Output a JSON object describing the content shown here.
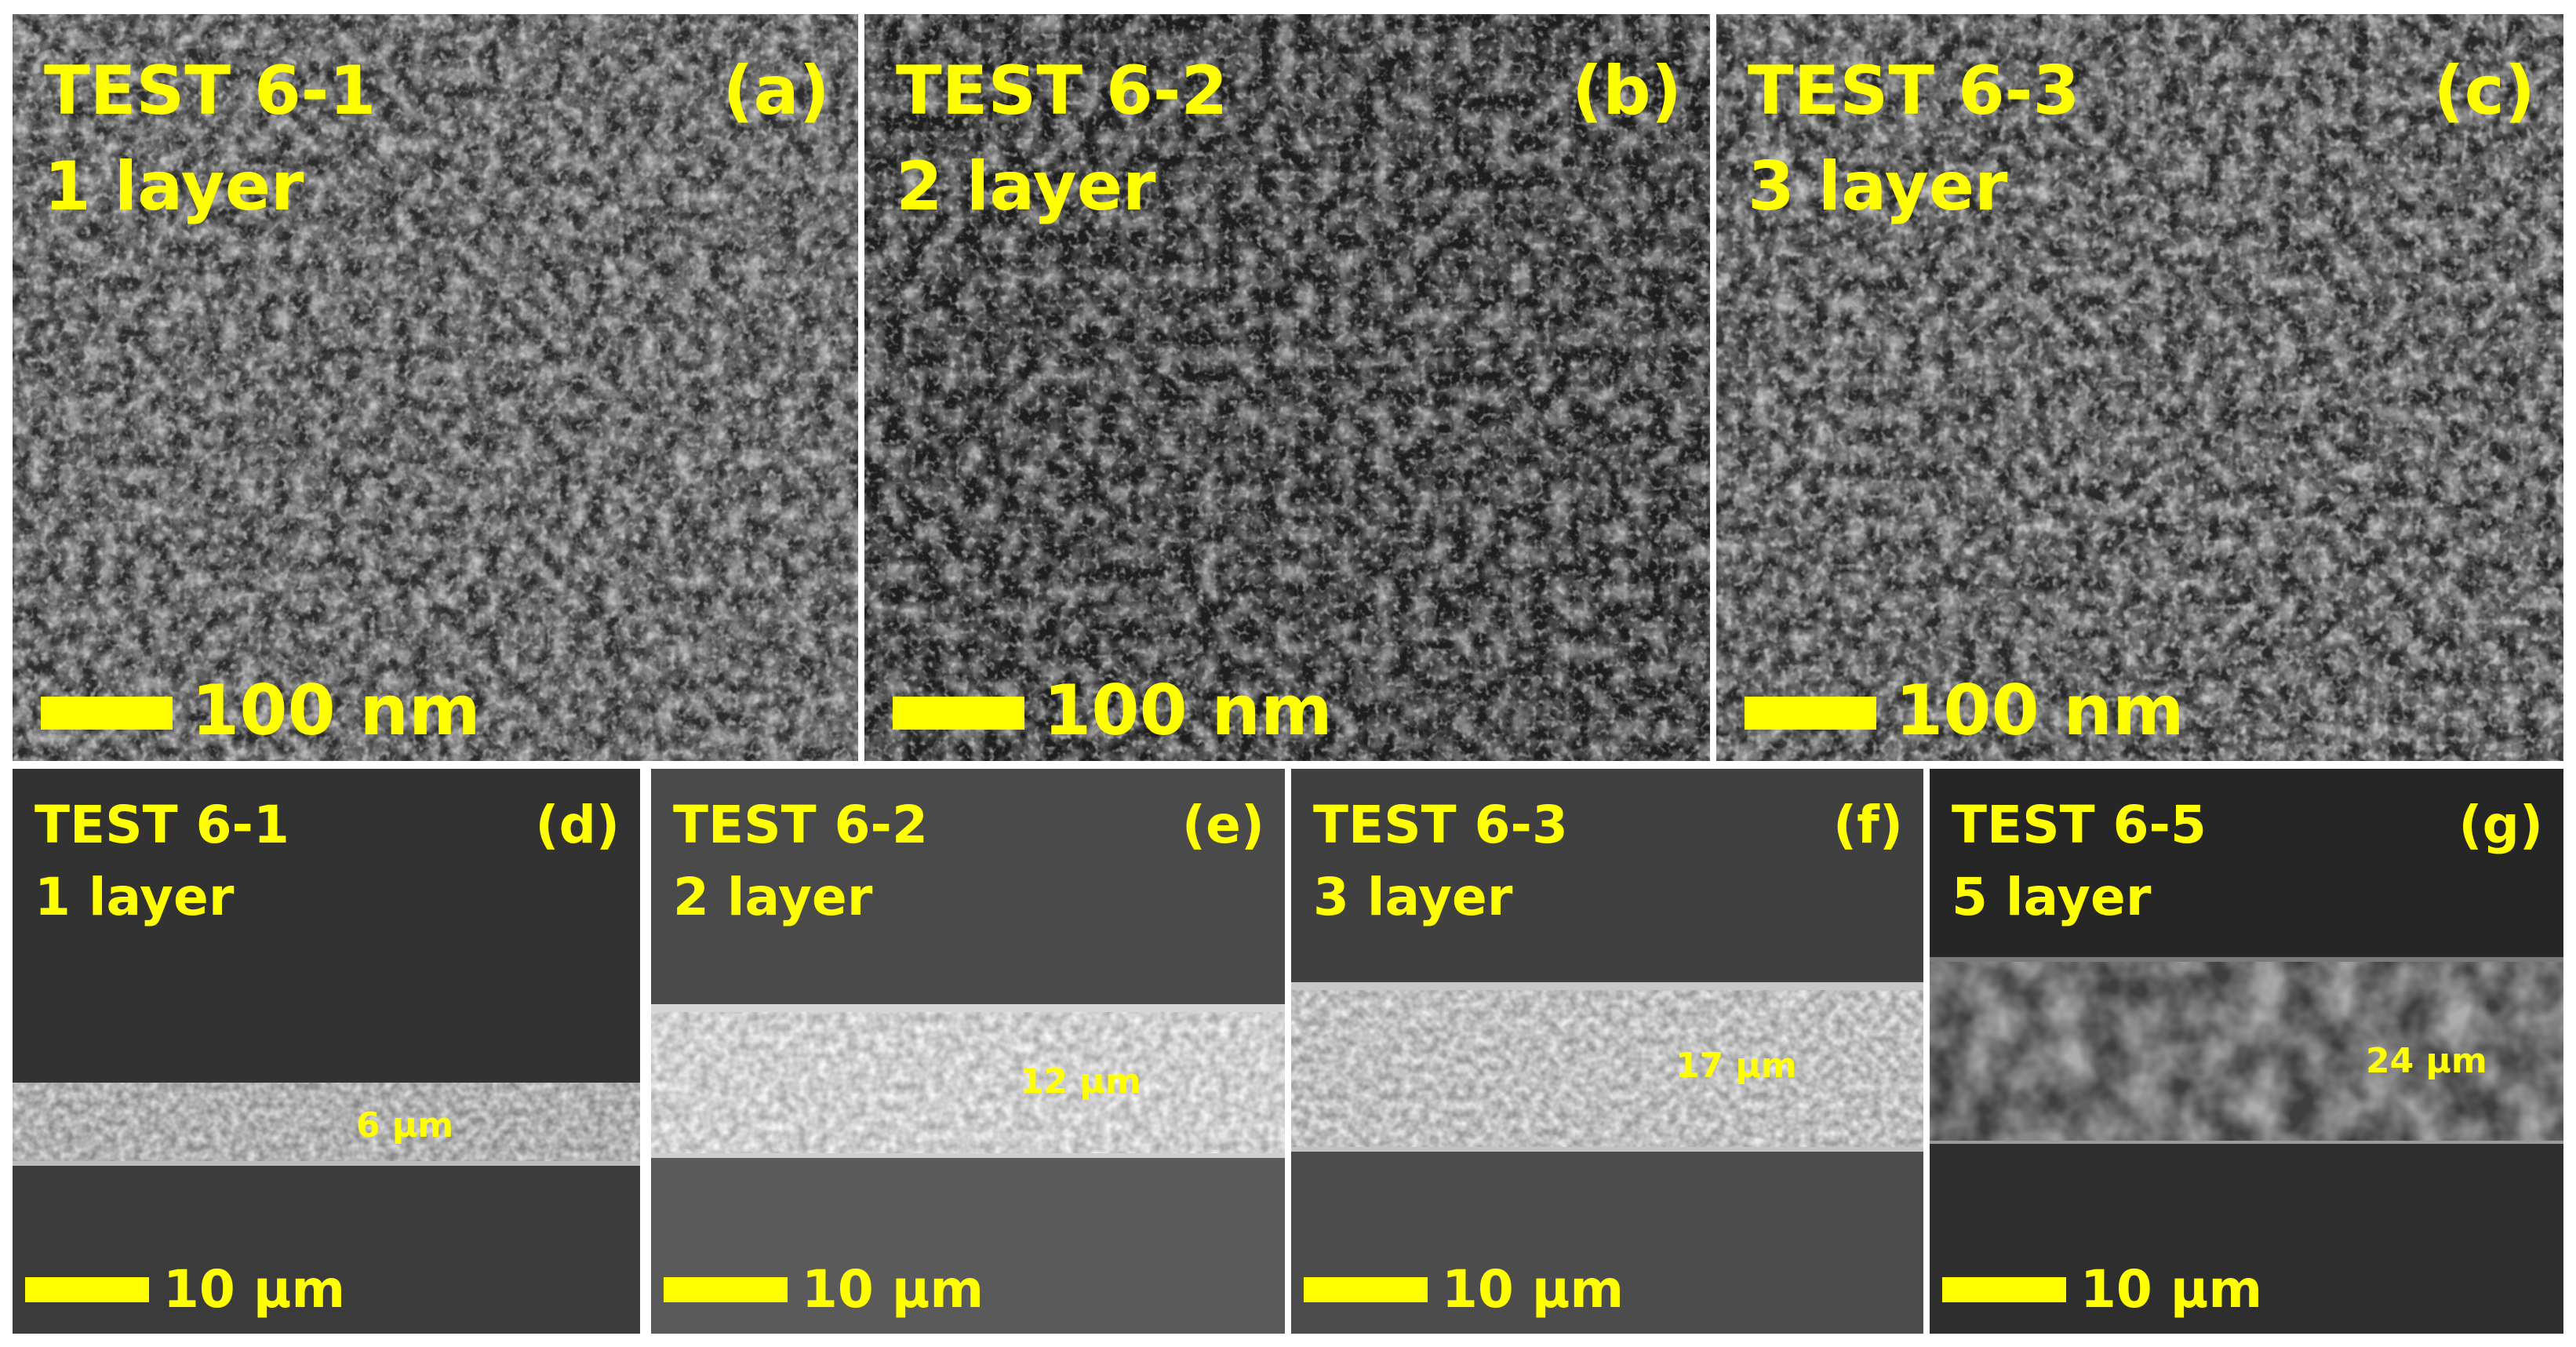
{
  "top_panels": [
    {
      "title": "TEST 6-1",
      "layers": "1 layer",
      "letter": "(a)",
      "scale": "100 nm"
    },
    {
      "title": "TEST 6-2",
      "layers": "2 layer",
      "letter": "(b)",
      "scale": "100 nm"
    },
    {
      "title": "TEST 6-3",
      "layers": "3 layer",
      "letter": "(c)",
      "scale": "100 nm"
    }
  ],
  "bottom_panels": [
    {
      "title": "TEST 6-1",
      "layers": "1 layer",
      "letter": "(d)",
      "scale": "10 μm",
      "thickness": "6 μm"
    },
    {
      "title": "TEST 6-2",
      "layers": "2 layer",
      "letter": "(e)",
      "scale": "10 μm",
      "thickness": "12 μm"
    },
    {
      "title": "TEST 6-3",
      "layers": "3 layer",
      "letter": "(f)",
      "scale": "10 μm",
      "thickness": "17 μm"
    },
    {
      "title": "TEST 6-5",
      "layers": "5 layer",
      "letter": "(g)",
      "scale": "10 μm",
      "thickness": "24 μm"
    }
  ],
  "colors": {
    "label": "#ffff00",
    "separator": "#ffffff",
    "background_dark": "#2a2a2a"
  }
}
